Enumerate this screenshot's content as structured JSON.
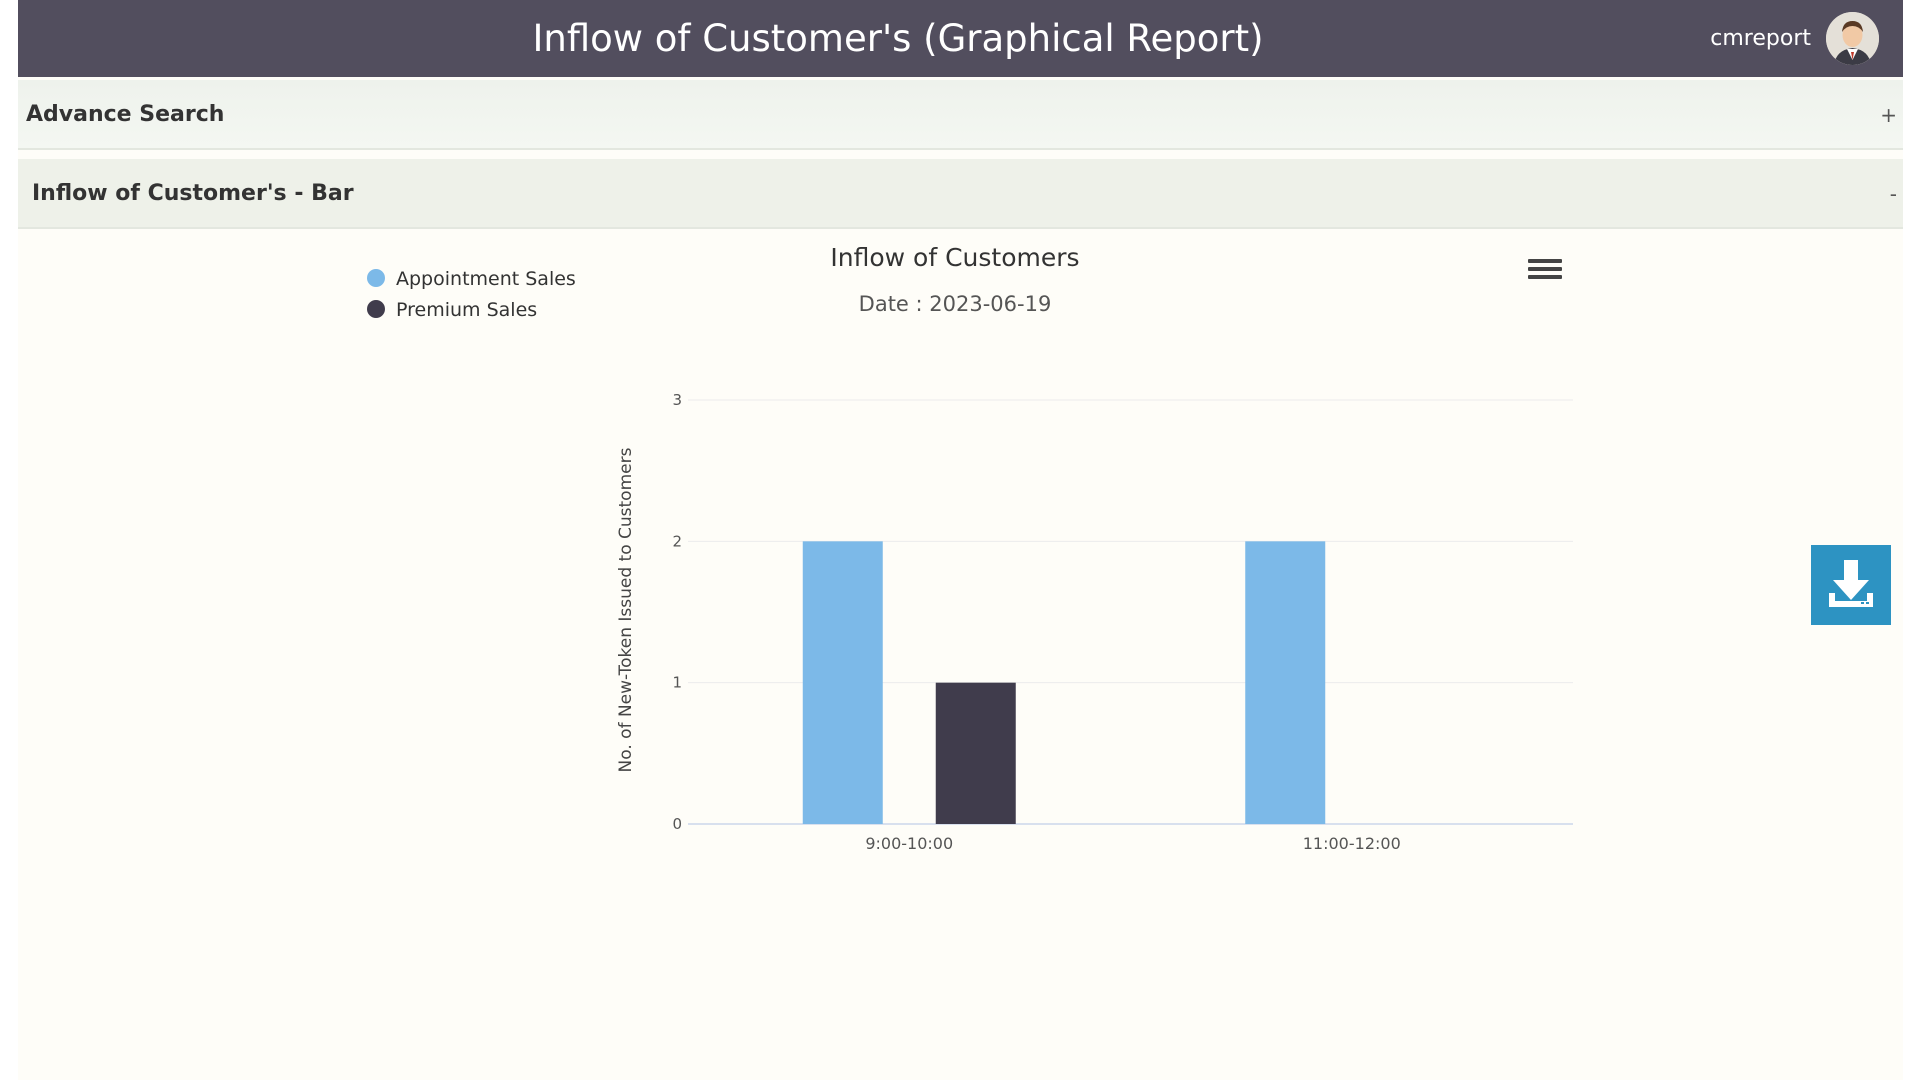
{
  "header": {
    "title": "Inflow of Customer's (Graphical Report)",
    "username": "cmreport",
    "avatar_icon": "user-avatar-icon",
    "bg_color": "#524e5e"
  },
  "advance_search": {
    "label": "Advance Search",
    "toggle": "+"
  },
  "bar_panel": {
    "label": "Inflow of Customer's - Bar",
    "toggle": "-"
  },
  "chart_data": {
    "type": "bar",
    "title": "Inflow of Customers",
    "subtitle": "Date : 2023-06-19",
    "xlabel": "",
    "ylabel": "No. of New-Token Issued to Customers",
    "categories": [
      "9:00-10:00",
      "11:00-12:00"
    ],
    "series": [
      {
        "name": "Appointment Sales",
        "values": [
          2,
          2
        ],
        "color": "#7cb9e8"
      },
      {
        "name": "Premium Sales",
        "values": [
          1,
          0
        ],
        "color": "#403c4c"
      }
    ],
    "yticks": [
      "0",
      "1",
      "2",
      "3"
    ],
    "ylim": [
      0,
      3
    ],
    "grid": true,
    "legend_position": "top-left"
  },
  "controls": {
    "menu_icon": "hamburger-menu-icon",
    "download_icon": "download-icon",
    "download_color": "#2d93c2"
  }
}
